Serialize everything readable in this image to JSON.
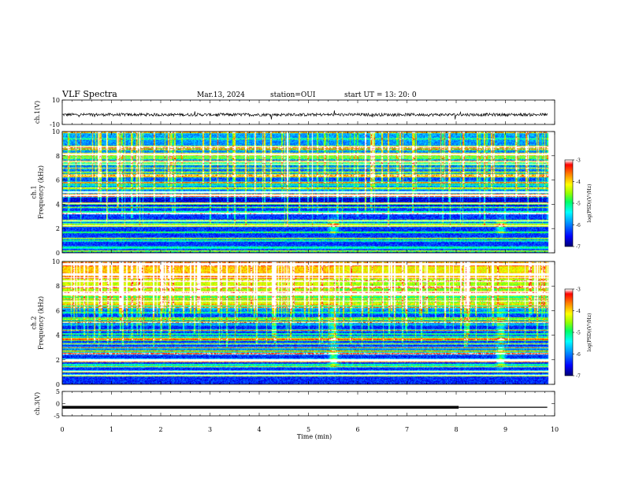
{
  "header": {
    "title": "VLF Spectra",
    "date": "Mar.13, 2024",
    "station": "station=OUI",
    "start": "start  UT =  13: 20: 0"
  },
  "chart_data": [
    {
      "type": "line",
      "name": "ch1-waveform",
      "ylabel": "ch.1(V)",
      "xlim": [
        0,
        10
      ],
      "ylim": [
        -10,
        10
      ],
      "yticks": [
        "10",
        "-10"
      ],
      "baseline": -2,
      "amplitude": 1.2
    },
    {
      "type": "heatmap",
      "name": "ch1-spectrogram",
      "ylabel": "ch.1\nFrequency (kHz)",
      "ylabel_lines": [
        "ch.1",
        "Frequency (kHz)"
      ],
      "xlim": [
        0,
        10
      ],
      "ylim": [
        0,
        10
      ],
      "yticks": [
        "0",
        "2",
        "4",
        "6",
        "8",
        "10"
      ],
      "colorbar": {
        "label": "log(PSD)(V²/Hz)",
        "ticks": [
          "-3",
          "-4",
          "-5",
          "-6",
          "-7"
        ],
        "range": [
          -7,
          -3
        ]
      },
      "features": {
        "whistlers_min": [
          5.5,
          8.9
        ],
        "whistler_freq_khz": [
          1.5,
          3.0
        ]
      }
    },
    {
      "type": "heatmap",
      "name": "ch2-spectrogram",
      "ylabel": "ch.2\nFrequency (kHz)",
      "ylabel_lines": [
        "ch.2",
        "Frequency (kHz)"
      ],
      "xlim": [
        0,
        10
      ],
      "ylim": [
        0,
        10
      ],
      "yticks": [
        "0",
        "2",
        "4",
        "6",
        "8",
        "10"
      ],
      "colorbar": {
        "label": "log(PSD)(V²/Hz)",
        "ticks": [
          "-3",
          "-4",
          "-5",
          "-6",
          "-7"
        ],
        "range": [
          -7,
          -3
        ]
      },
      "features": {
        "whistlers_min": [
          5.5,
          8.9
        ],
        "whistler_freq_khz": [
          1.5,
          6.5
        ]
      }
    },
    {
      "type": "line",
      "name": "ch3-waveform",
      "ylabel": "ch.3(V)",
      "xlim": [
        0,
        10
      ],
      "ylim": [
        -5,
        5
      ],
      "yticks": [
        "5",
        "0",
        "-5"
      ],
      "baseline": -1.5,
      "thick_until": 8.05
    }
  ],
  "x_axis": {
    "label": "Time (min)",
    "ticks": [
      "0",
      "1",
      "2",
      "3",
      "4",
      "5",
      "6",
      "7",
      "8",
      "9",
      "10"
    ],
    "data_end": 9.85
  },
  "colors": {
    "colormap": [
      "#000080",
      "#0000ff",
      "#00a0ff",
      "#00ffff",
      "#00ff60",
      "#b0ff00",
      "#ffff00",
      "#ff8000",
      "#ff0000",
      "#ffffff"
    ]
  }
}
